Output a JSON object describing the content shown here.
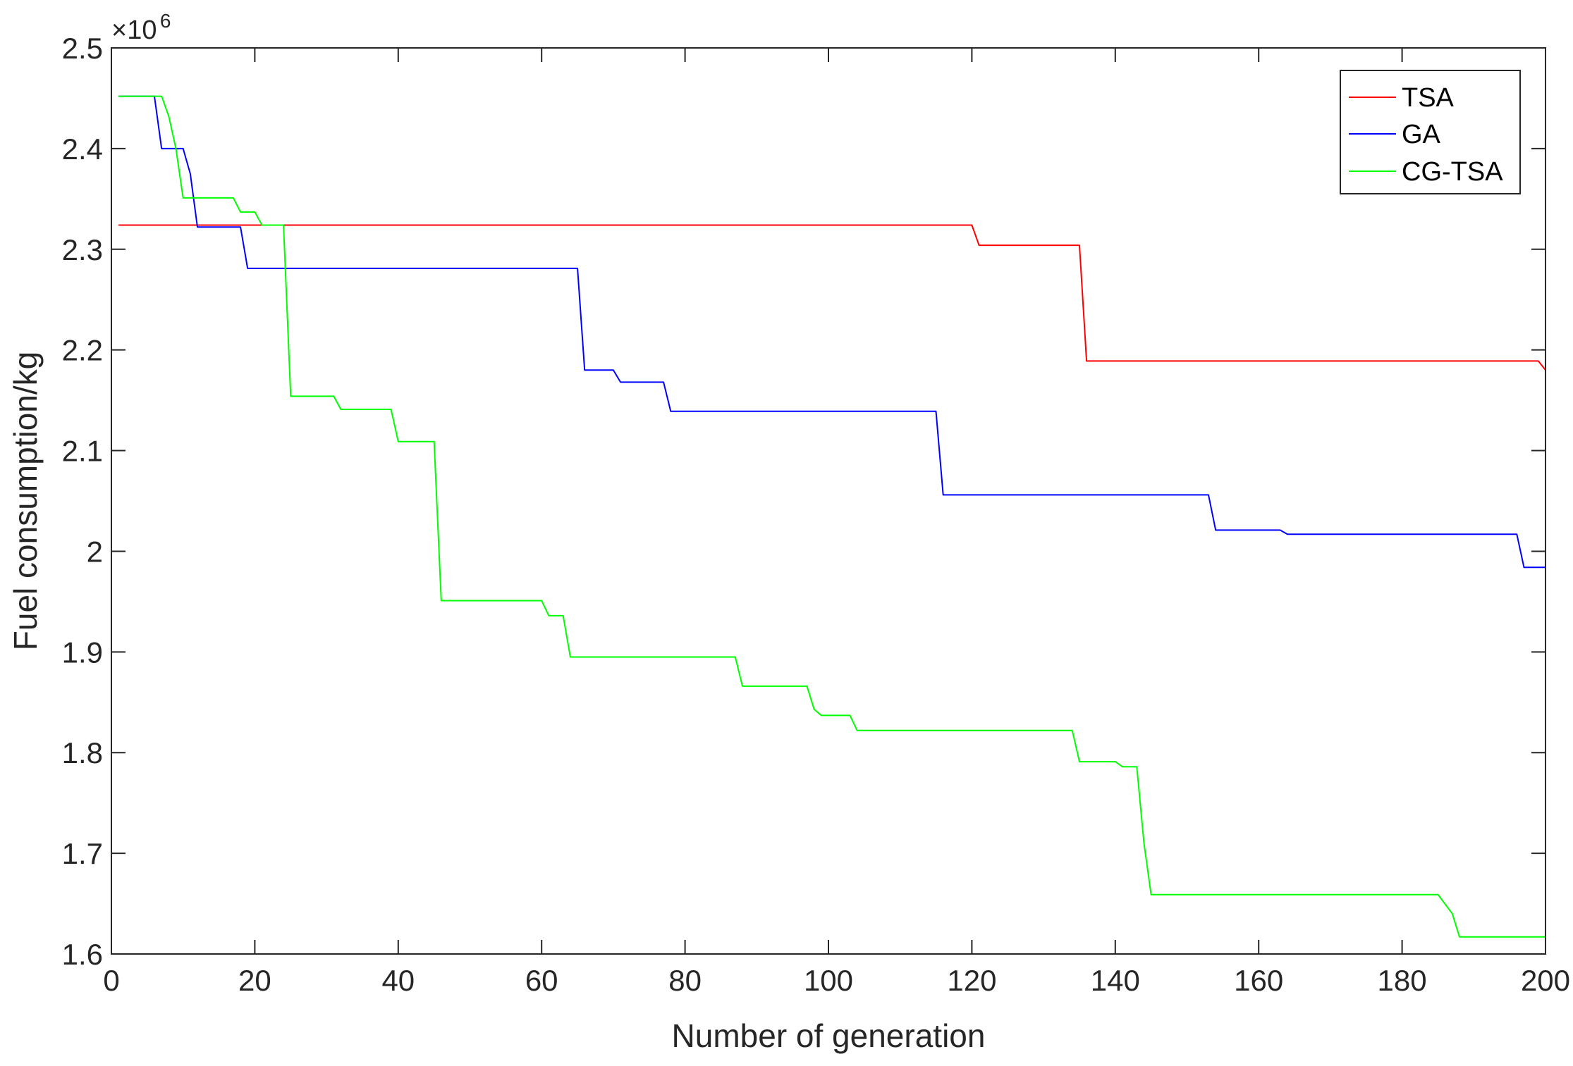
{
  "chart_data": {
    "type": "line",
    "xlabel": "Number of generation",
    "ylabel": "Fuel consumption/kg",
    "xlim": [
      0,
      200
    ],
    "ylim": [
      1.6,
      2.5
    ],
    "y_multiplier": {
      "base": "×10",
      "exponent": "6"
    },
    "x_ticks": [
      "0",
      "20",
      "40",
      "60",
      "80",
      "100",
      "120",
      "140",
      "160",
      "180",
      "200"
    ],
    "y_ticks": [
      "1.6",
      "1.7",
      "1.8",
      "1.9",
      "2",
      "2.1",
      "2.2",
      "2.3",
      "2.4",
      "2.5"
    ],
    "grid": false,
    "legend_position": "top-right",
    "series": [
      {
        "name": "TSA",
        "color": "#ff0000",
        "points": [
          [
            1,
            2.324
          ],
          [
            120,
            2.324
          ],
          [
            121,
            2.304
          ],
          [
            135,
            2.304
          ],
          [
            136,
            2.189
          ],
          [
            199,
            2.189
          ],
          [
            200,
            2.18
          ]
        ]
      },
      {
        "name": "GA",
        "color": "#0000ff",
        "points": [
          [
            1,
            2.452
          ],
          [
            6,
            2.452
          ],
          [
            7,
            2.4
          ],
          [
            10,
            2.4
          ],
          [
            11,
            2.375
          ],
          [
            12,
            2.322
          ],
          [
            18,
            2.322
          ],
          [
            19,
            2.281
          ],
          [
            65,
            2.281
          ],
          [
            66,
            2.18
          ],
          [
            70,
            2.18
          ],
          [
            71,
            2.168
          ],
          [
            77,
            2.168
          ],
          [
            78,
            2.139
          ],
          [
            115,
            2.139
          ],
          [
            116,
            2.056
          ],
          [
            153,
            2.056
          ],
          [
            154,
            2.021
          ],
          [
            163,
            2.021
          ],
          [
            164,
            2.017
          ],
          [
            196,
            2.017
          ],
          [
            197,
            1.984
          ],
          [
            200,
            1.984
          ]
        ]
      },
      {
        "name": "CG-TSA",
        "color": "#00ff00",
        "points": [
          [
            1,
            2.452
          ],
          [
            7,
            2.452
          ],
          [
            8,
            2.432
          ],
          [
            9,
            2.4
          ],
          [
            10,
            2.351
          ],
          [
            17,
            2.351
          ],
          [
            18,
            2.337
          ],
          [
            20,
            2.337
          ],
          [
            21,
            2.324
          ],
          [
            24,
            2.324
          ],
          [
            25,
            2.154
          ],
          [
            31,
            2.154
          ],
          [
            32,
            2.141
          ],
          [
            39,
            2.141
          ],
          [
            40,
            2.109
          ],
          [
            45,
            2.109
          ],
          [
            46,
            1.951
          ],
          [
            60,
            1.951
          ],
          [
            61,
            1.936
          ],
          [
            63,
            1.936
          ],
          [
            64,
            1.895
          ],
          [
            87,
            1.895
          ],
          [
            88,
            1.866
          ],
          [
            97,
            1.866
          ],
          [
            98,
            1.843
          ],
          [
            99,
            1.837
          ],
          [
            103,
            1.837
          ],
          [
            104,
            1.822
          ],
          [
            134,
            1.822
          ],
          [
            135,
            1.791
          ],
          [
            140,
            1.791
          ],
          [
            141,
            1.786
          ],
          [
            143,
            1.786
          ],
          [
            144,
            1.71
          ],
          [
            145,
            1.659
          ],
          [
            185,
            1.659
          ],
          [
            187,
            1.64
          ],
          [
            188,
            1.617
          ],
          [
            200,
            1.617
          ]
        ]
      }
    ]
  }
}
